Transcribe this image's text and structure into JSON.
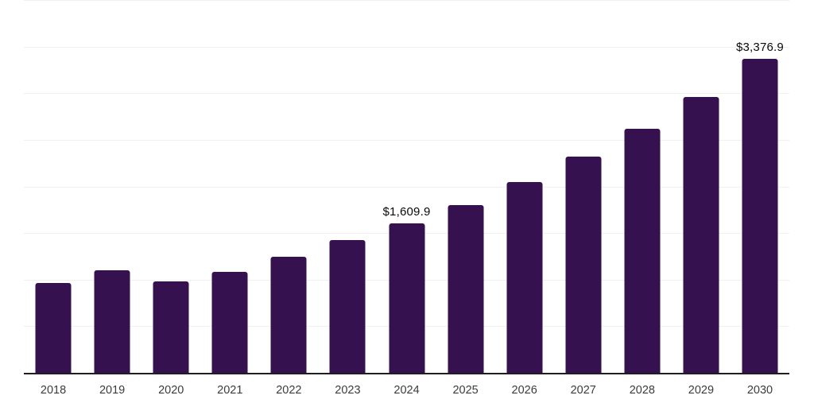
{
  "chart_data": {
    "type": "bar",
    "title": "",
    "xlabel": "",
    "ylabel": "",
    "categories": [
      "2018",
      "2019",
      "2020",
      "2021",
      "2022",
      "2023",
      "2024",
      "2025",
      "2026",
      "2027",
      "2028",
      "2029",
      "2030"
    ],
    "values": [
      975,
      1110,
      990,
      1095,
      1255,
      1430,
      1609.9,
      1810,
      2055,
      2325,
      2630,
      2970,
      3376.9
    ],
    "point_labels": [
      null,
      null,
      null,
      null,
      null,
      null,
      "$1,609.9",
      null,
      null,
      null,
      null,
      null,
      "$3,376.9"
    ],
    "ylim": [
      0,
      4000
    ],
    "gridline_step": 500,
    "grid": "horizontal",
    "legend": "none",
    "colors": {
      "bar_fill": "#36114F",
      "gridline": "#f0f0f0",
      "axis_line": "#1f1f1f",
      "tick_text": "#3c3c3c",
      "label_text": "#0a0a0a",
      "background": "#ffffff"
    }
  }
}
